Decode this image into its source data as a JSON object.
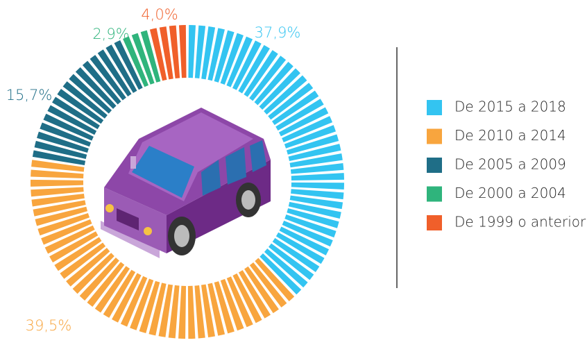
{
  "chart_data": {
    "type": "donut",
    "categories": [
      "De 2015 a 2018",
      "De 2010 a 2014",
      "De 2005 a 2009",
      "De 2000 a 2004",
      "De 1999 o anterior"
    ],
    "values": [
      37.9,
      39.5,
      15.7,
      2.9,
      4.0
    ],
    "value_labels": [
      "37,9%",
      "39,5%",
      "15,7%",
      "2,9%",
      "4,0%"
    ],
    "colors": [
      "#33c4f1",
      "#f8a53e",
      "#1f6e87",
      "#2fb47c",
      "#f05f2a"
    ],
    "legend": "right"
  }
}
